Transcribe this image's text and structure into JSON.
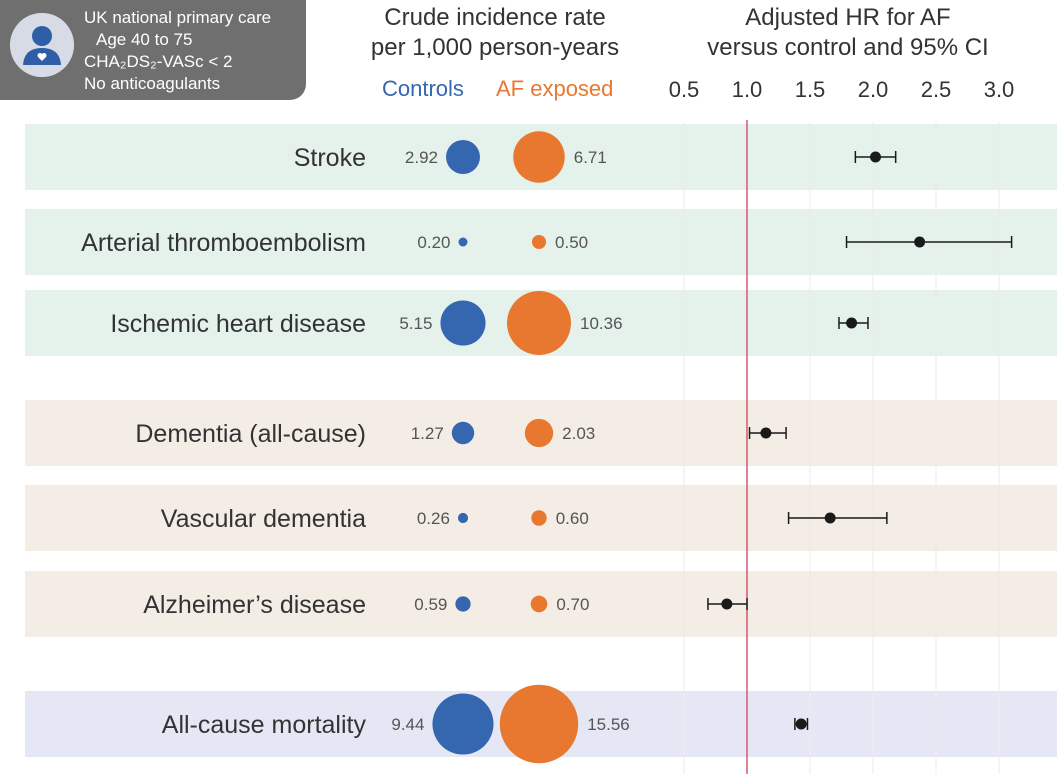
{
  "cohort": {
    "lines": [
      "UK national primary care",
      "Age 40 to 75",
      "CHA₂DS₂-VASc < 2",
      "No anticoagulants"
    ]
  },
  "headers": {
    "incidence_line1": "Crude incidence rate",
    "incidence_line2": "per 1,000 person-years",
    "hr_line1": "Adjusted HR for AF",
    "hr_line2": "versus control and 95% CI",
    "controls_label": "Controls",
    "af_label": "AF exposed"
  },
  "colors": {
    "controls": "#3567b1",
    "af": "#e8782f",
    "cardio_band": "#e5f2ec",
    "neuro_band": "#f3ede6",
    "mortality_band": "#e5e8f4",
    "reference_line": "#d0405a",
    "point": "#1a1a1a"
  },
  "chart_data": {
    "type": "forest-bubble",
    "x_axis": {
      "label": "Adjusted HR for AF versus control and 95% CI",
      "ticks": [
        0.5,
        1.0,
        1.5,
        2.0,
        2.5,
        3.0
      ],
      "tick_labels": [
        "0.5",
        "1.0",
        "1.5",
        "2.0",
        "2.5",
        "3.0"
      ],
      "range": [
        0.5,
        3.0
      ],
      "reference": 1.0
    },
    "outcomes": [
      {
        "name": "Stroke",
        "group": "cardio",
        "controls_rate": 2.92,
        "controls_label": "2.92",
        "af_rate": 6.71,
        "af_label": "6.71",
        "hr": 2.02,
        "ci_low": 1.86,
        "ci_high": 2.18
      },
      {
        "name": "Arterial thromboembolism",
        "group": "cardio",
        "controls_rate": 0.2,
        "controls_label": "0.20",
        "af_rate": 0.5,
        "af_label": "0.50",
        "hr": 2.37,
        "ci_low": 1.79,
        "ci_high": 3.1
      },
      {
        "name": "Ischemic heart disease",
        "group": "cardio",
        "controls_rate": 5.15,
        "controls_label": "5.15",
        "af_rate": 10.36,
        "af_label": "10.36",
        "hr": 1.83,
        "ci_low": 1.73,
        "ci_high": 1.96
      },
      {
        "name": "Dementia (all-cause)",
        "group": "neuro",
        "controls_rate": 1.27,
        "controls_label": "1.27",
        "af_rate": 2.03,
        "af_label": "2.03",
        "hr": 1.15,
        "ci_low": 1.02,
        "ci_high": 1.31
      },
      {
        "name": "Vascular dementia",
        "group": "neuro",
        "controls_rate": 0.26,
        "controls_label": "0.26",
        "af_rate": 0.6,
        "af_label": "0.60",
        "hr": 1.66,
        "ci_low": 1.33,
        "ci_high": 2.11
      },
      {
        "name": "Alzheimer’s disease",
        "group": "neuro",
        "controls_rate": 0.59,
        "controls_label": "0.59",
        "af_rate": 0.7,
        "af_label": "0.70",
        "hr": 0.84,
        "ci_low": 0.69,
        "ci_high": 1.0
      },
      {
        "name": "All-cause mortality",
        "group": "mortality",
        "controls_rate": 9.44,
        "controls_label": "9.44",
        "af_rate": 15.56,
        "af_label": "15.56",
        "hr": 1.43,
        "ci_low": 1.38,
        "ci_high": 1.48
      }
    ]
  }
}
